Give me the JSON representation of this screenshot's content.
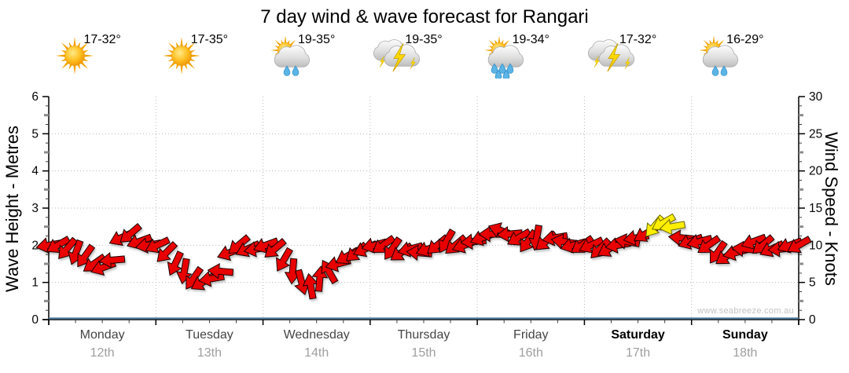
{
  "title": "7 day wind & wave forecast for Rangari",
  "watermark": "www.seabreeze.com.au",
  "axes": {
    "left_title": "Wave Height - Metres",
    "right_title": "Wind Speed - Knots",
    "left_ticks": [
      0,
      1,
      2,
      3,
      4,
      5,
      6
    ],
    "right_ticks": [
      0,
      5,
      10,
      15,
      20,
      25,
      30
    ],
    "left_range": [
      0,
      6
    ],
    "right_range": [
      0,
      30
    ]
  },
  "days": [
    {
      "name": "Monday",
      "date": "12th",
      "temp": "17-32°",
      "icon": "sunny",
      "rain_drops": 0,
      "bold": false
    },
    {
      "name": "Tuesday",
      "date": "13th",
      "temp": "17-35°",
      "icon": "sunny",
      "rain_drops": 0,
      "bold": false
    },
    {
      "name": "Wednesday",
      "date": "14th",
      "temp": "19-35°",
      "icon": "sun-cloud-rain",
      "rain_drops": 2,
      "bold": false
    },
    {
      "name": "Thursday",
      "date": "15th",
      "temp": "19-35°",
      "icon": "thunderstorm",
      "rain_drops": 0,
      "bold": false
    },
    {
      "name": "Friday",
      "date": "16th",
      "temp": "19-34°",
      "icon": "sun-cloud-rain",
      "rain_drops": 5,
      "bold": false
    },
    {
      "name": "Saturday",
      "date": "17th",
      "temp": "17-32°",
      "icon": "thunderstorm",
      "rain_drops": 0,
      "bold": true
    },
    {
      "name": "Sunday",
      "date": "18th",
      "temp": "16-29°",
      "icon": "sun-cloud-rain",
      "rain_drops": 2,
      "bold": true
    }
  ],
  "colors": {
    "arrow_red": "#e80000",
    "arrow_yellow": "#ffee00",
    "arrow_outline": "#1c0000",
    "yellow_outline": "#6b6b00",
    "wave_line": "#4e7596",
    "gridline": "#b8b8b8",
    "axis": "#000000"
  },
  "chart_data": {
    "type": "wind-arrows",
    "title": "7 day wind & wave forecast for Rangari",
    "x_axis": "7 days (Monday 12th to Sunday 18th), arrows every 2 hours",
    "left_axis": {
      "label": "Wave Height - Metres",
      "range": [
        0,
        6
      ]
    },
    "right_axis": {
      "label": "Wind Speed - Knots",
      "range": [
        0,
        30
      ]
    },
    "grid": "dotted, horizontal every 1 m / 5 kn, vertical at day boundaries",
    "yellow_threshold_knots": 12.5,
    "wave_height_m": 0,
    "wind": {
      "step_hours": 2,
      "knots": [
        10,
        10,
        9.5,
        9,
        8.5,
        7.5,
        7,
        8,
        11,
        11.5,
        10.5,
        10,
        10,
        9,
        7.5,
        6.5,
        5.5,
        5,
        5.5,
        6.5,
        9,
        10,
        9.5,
        9.5,
        10,
        9.5,
        8,
        6.5,
        5,
        4.5,
        5.5,
        6.5,
        7.5,
        8.5,
        9,
        9.5,
        10,
        10,
        9.5,
        9,
        9.5,
        9,
        9.5,
        10,
        10.5,
        10,
        10,
        10.5,
        11,
        11.5,
        12,
        11.5,
        11,
        10.5,
        11,
        10.5,
        11,
        10.5,
        10,
        10,
        10,
        9.5,
        9.5,
        10,
        10.5,
        11,
        11.5,
        12.5,
        13,
        12.5,
        11,
        10.5,
        10.5,
        10,
        9,
        8.5,
        9,
        9.5,
        10.5,
        10,
        9.5,
        9.5,
        10,
        10
      ],
      "dir_deg": [
        170,
        150,
        130,
        110,
        125,
        145,
        160,
        175,
        155,
        140,
        160,
        170,
        155,
        135,
        115,
        100,
        125,
        150,
        170,
        185,
        160,
        140,
        155,
        170,
        160,
        140,
        120,
        95,
        75,
        260,
        275,
        240,
        165,
        150,
        140,
        155,
        165,
        145,
        125,
        145,
        165,
        185,
        160,
        140,
        120,
        140,
        160,
        175,
        160,
        180,
        200,
        175,
        150,
        125,
        100,
        140,
        170,
        190,
        165,
        145,
        155,
        135,
        150,
        170,
        190,
        170,
        150,
        130,
        150,
        170,
        185,
        160,
        165,
        145,
        125,
        145,
        165,
        185,
        160,
        140,
        155,
        175,
        160,
        150
      ]
    }
  }
}
